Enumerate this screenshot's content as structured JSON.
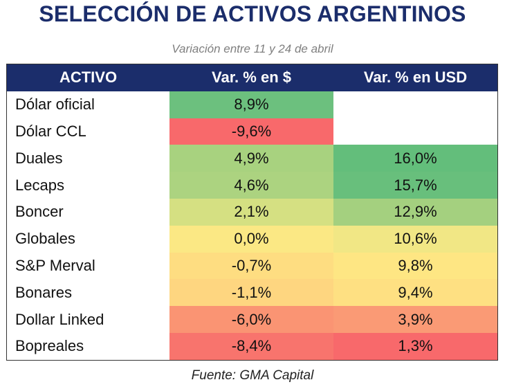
{
  "header": {
    "title": "SELECCIÓN DE ACTIVOS ARGENTINOS",
    "subtitle": "Variación entre 11 y 24 de abril"
  },
  "table": {
    "columns": [
      "ACTIVO",
      "Var. % en $",
      "Var. % en USD"
    ],
    "rows": [
      [
        "Dólar oficial",
        "8,9%",
        null
      ],
      [
        "Dólar CCL",
        "-9,6%",
        null
      ],
      [
        "Duales",
        "4,9%",
        "16,0%"
      ],
      [
        "Lecaps",
        "4,6%",
        "15,7%"
      ],
      [
        "Boncer",
        "2,1%",
        "12,9%"
      ],
      [
        "Globales",
        "0,0%",
        "10,6%"
      ],
      [
        "S&P Merval",
        "-0,7%",
        "9,8%"
      ],
      [
        "Bonares",
        "-1,1%",
        "9,4%"
      ],
      [
        "Dollar Linked",
        "-6,0%",
        "3,9%"
      ],
      [
        "Bopreales",
        "-8,4%",
        "1,3%"
      ]
    ],
    "cell_colors": [
      [
        null,
        "#6cc07e",
        null
      ],
      [
        null,
        "#f8696b",
        null
      ],
      [
        null,
        "#a8d27f",
        "#63be7b"
      ],
      [
        null,
        "#acd380",
        "#68bf7c"
      ],
      [
        null,
        "#d5e082",
        "#a4d07f"
      ],
      [
        null,
        "#fbe884",
        "#f1e785"
      ],
      [
        null,
        "#fedd81",
        "#fee683"
      ],
      [
        null,
        "#fed680",
        "#fee082"
      ],
      [
        null,
        "#fa9473",
        "#fa9a75"
      ],
      [
        null,
        "#f8746d",
        "#f8696b"
      ]
    ]
  },
  "footer": {
    "source": "Fuente: GMA Capital"
  }
}
